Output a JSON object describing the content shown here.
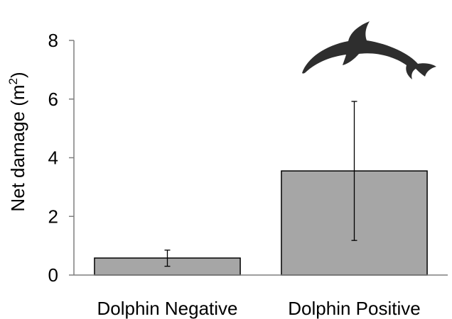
{
  "chart_data": {
    "type": "bar",
    "title": "",
    "xlabel": "",
    "ylabel": "Net damage (m",
    "ylabel_sup": "2",
    "ylabel_close": ")",
    "categories": [
      "Dolphin Negative",
      "Dolphin Positive"
    ],
    "values": [
      0.58,
      3.55
    ],
    "error_low": [
      0.3,
      1.18
    ],
    "error_high": [
      0.85,
      5.92
    ],
    "ylim": [
      0,
      8
    ],
    "yticks": [
      0,
      2,
      4,
      6,
      8
    ],
    "grid": false,
    "bar_color": "#a6a6a6",
    "annotation_icon": "dolphin-icon"
  }
}
